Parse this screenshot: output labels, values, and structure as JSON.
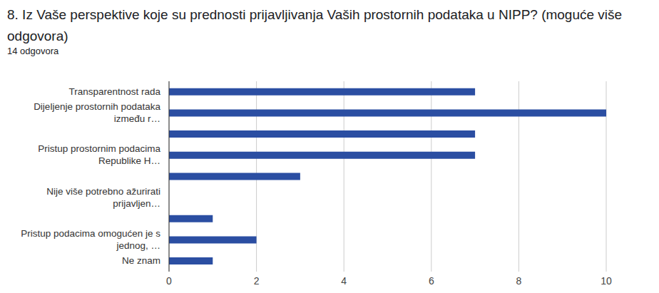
{
  "chart_data": {
    "type": "bar",
    "title": "8. Iz Vaše perspektive koje su prednosti prijavljivanja Vaših prostornih podataka u NIPP? (moguće više odgovora)",
    "subtitle": "14 odgovora",
    "categories": [
      "Transparentnost rada",
      "Dijeljenje prostornih podataka između r…",
      null,
      "Pristup prostornim podacima Republike H…",
      null,
      "Nije više potrebno ažurirati prijavljen…",
      null,
      "Pristup podacima omogućen je s jednog, …",
      "Ne znam"
    ],
    "values": [
      7,
      10,
      7,
      7,
      3,
      0,
      1,
      2,
      1
    ],
    "color": "#2b4ea2",
    "orientation": "horizontal",
    "xlim": [
      0,
      10
    ],
    "xticks": [
      0,
      2,
      4,
      6,
      8,
      10
    ],
    "grid": true
  }
}
